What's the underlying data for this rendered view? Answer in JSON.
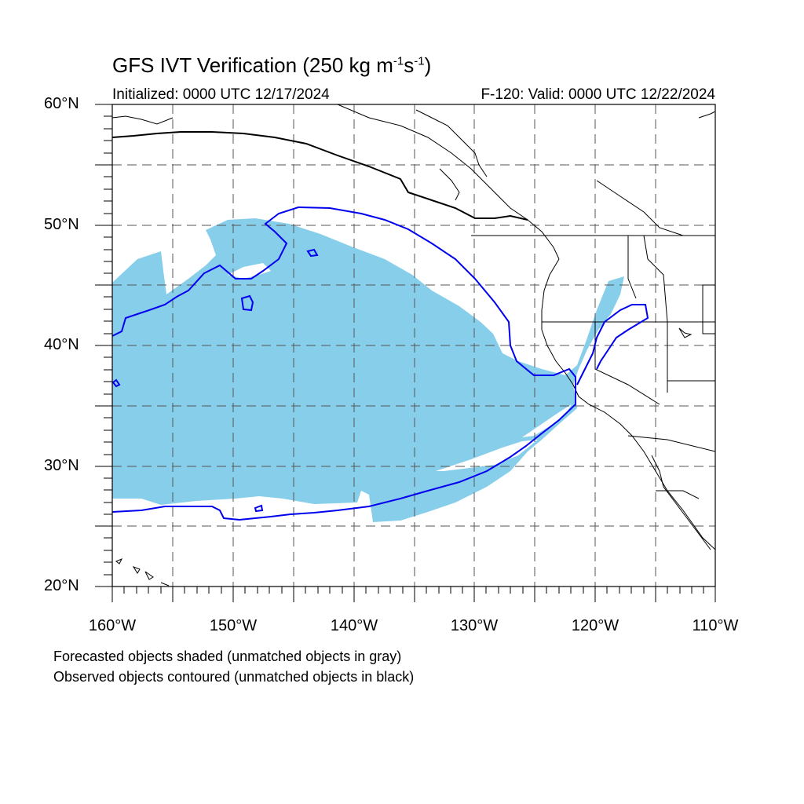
{
  "title": {
    "prefix": "GFS IVT Verification (250 kg m",
    "sup1": "-1",
    "mid": "s",
    "sup2": "-1",
    "suffix": ")"
  },
  "initialized": "Initialized: 0000 UTC 12/17/2024",
  "valid": "F-120: Valid: 0000 UTC 12/22/2024",
  "lat_labels": [
    "60°N",
    "50°N",
    "40°N",
    "30°N",
    "20°N"
  ],
  "lon_labels": [
    "160°W",
    "150°W",
    "140°W",
    "130°W",
    "120°W",
    "110°W"
  ],
  "captions": [
    "Forecasted objects shaded (unmatched objects in gray)",
    "Observed objects contoured (unmatched objects in black)"
  ],
  "colors": {
    "forecast_matched": "#87CEEB",
    "observed_matched": "#0000EE",
    "observed_unmatched": "#000000",
    "grid": "#555555"
  },
  "map_extent": {
    "lon": [
      -160,
      -110
    ],
    "lat": [
      20,
      60
    ]
  }
}
